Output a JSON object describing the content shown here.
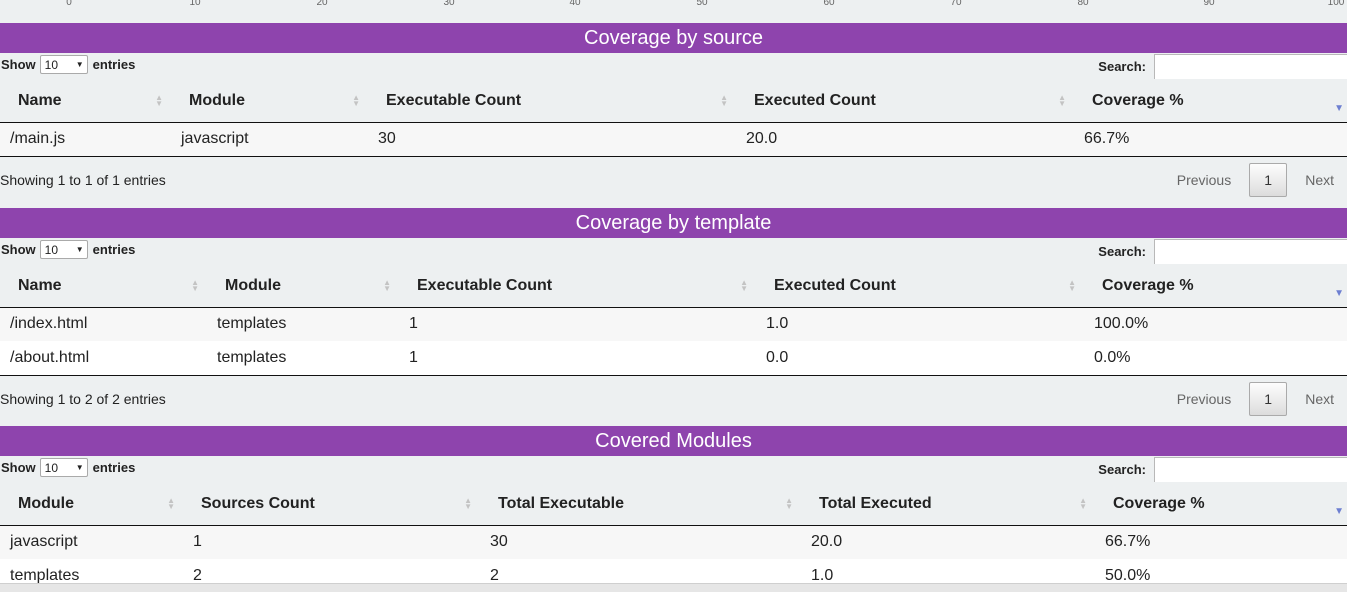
{
  "axis": {
    "ticks": [
      "0",
      "10",
      "20",
      "30",
      "40",
      "50",
      "60",
      "70",
      "80",
      "90",
      "100"
    ]
  },
  "labels": {
    "show": "Show",
    "entries": "entries",
    "length_value": "10",
    "search": "Search:",
    "previous": "Previous",
    "next": "Next",
    "page": "1"
  },
  "source": {
    "title": "Coverage by source",
    "columns": [
      "Name",
      "Module",
      "Executable Count",
      "Executed Count",
      "Coverage %"
    ],
    "rows": [
      [
        "/main.js",
        "javascript",
        "30",
        "20.0",
        "66.7%"
      ]
    ],
    "info": "Showing 1 to 1 of 1 entries"
  },
  "template": {
    "title": "Coverage by template",
    "columns": [
      "Name",
      "Module",
      "Executable Count",
      "Executed Count",
      "Coverage %"
    ],
    "rows": [
      [
        "/index.html",
        "templates",
        "1",
        "1.0",
        "100.0%"
      ],
      [
        "/about.html",
        "templates",
        "1",
        "0.0",
        "0.0%"
      ]
    ],
    "info": "Showing 1 to 2 of 2 entries"
  },
  "modules": {
    "title": "Covered Modules",
    "columns": [
      "Module",
      "Sources Count",
      "Total Executable",
      "Total Executed",
      "Coverage %"
    ],
    "rows": [
      [
        "javascript",
        "1",
        "30",
        "20.0",
        "66.7%"
      ],
      [
        "templates",
        "2",
        "2",
        "1.0",
        "50.0%"
      ]
    ]
  }
}
